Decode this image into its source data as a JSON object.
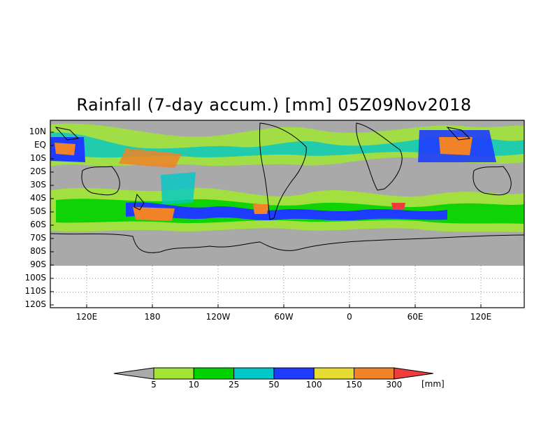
{
  "title": "Rainfall (7-day accum.) [mm] 05Z09Nov2018",
  "lat_labels": [
    "10N",
    "EQ",
    "10S",
    "20S",
    "30S",
    "40S",
    "50S",
    "60S",
    "70S",
    "80S",
    "90S",
    "100S",
    "110S",
    "120S"
  ],
  "lon_labels": [
    "120E",
    "180",
    "120W",
    "60W",
    "0",
    "60E",
    "120E"
  ],
  "legend": {
    "unit": "[mm]",
    "thresholds": [
      "5",
      "10",
      "25",
      "50",
      "100",
      "150",
      "300"
    ],
    "colors": [
      "#aaaaaa",
      "#a0e632",
      "#00d200",
      "#00c8c8",
      "#1e3cff",
      "#e6dc32",
      "#f08228",
      "#f03c3c"
    ]
  }
}
